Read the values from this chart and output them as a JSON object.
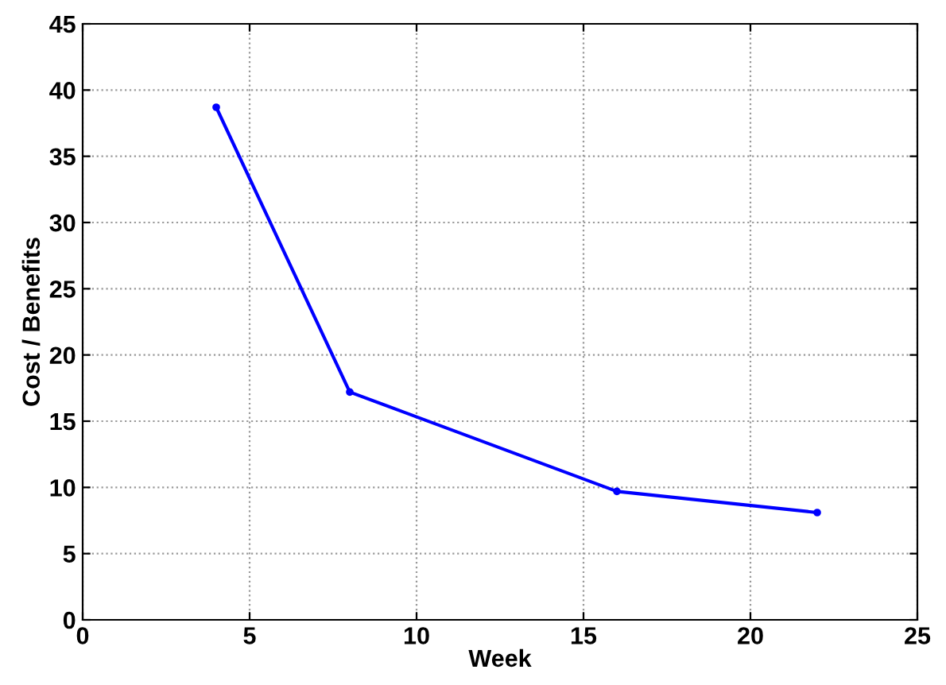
{
  "chart_data": {
    "type": "line",
    "xlabel": "Week",
    "ylabel": "Cost / Benefits",
    "x": [
      4,
      8,
      16,
      22
    ],
    "series": [
      {
        "color": "#0000ff",
        "values": [
          38.7,
          17.2,
          9.7,
          8.1
        ]
      }
    ],
    "xlim": [
      0,
      25
    ],
    "xticks": [
      0,
      5,
      10,
      15,
      20,
      25
    ],
    "ylim": [
      0,
      45
    ],
    "yticks": [
      0,
      5,
      10,
      15,
      20,
      25,
      30,
      35,
      40,
      45
    ],
    "grid": true,
    "marker": "circle",
    "line_style": "solid"
  }
}
